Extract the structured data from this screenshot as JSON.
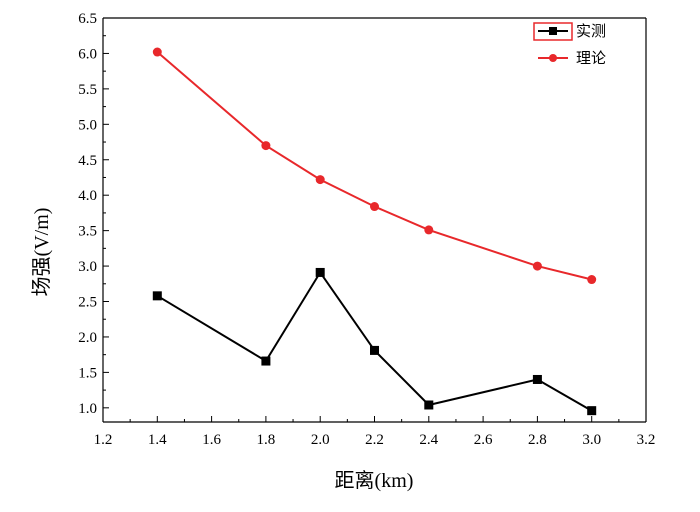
{
  "chart_data": {
    "type": "line",
    "xlabel": "距离(km)",
    "ylabel": "场强(V/m)",
    "xlim": [
      1.2,
      3.2
    ],
    "ylim": [
      0.8,
      6.5
    ],
    "xticks": [
      "1.2",
      "1.4",
      "1.6",
      "1.8",
      "2.0",
      "2.2",
      "2.4",
      "2.6",
      "2.8",
      "3.0",
      "3.2"
    ],
    "yticks": [
      "1.0",
      "1.5",
      "2.0",
      "2.5",
      "3.0",
      "3.5",
      "4.0",
      "4.5",
      "5.0",
      "5.5",
      "6.0",
      "6.5"
    ],
    "grid": false,
    "legend_position": "top-right",
    "series": [
      {
        "name": "实测",
        "color": "#000000",
        "marker": "square",
        "x": [
          1.4,
          1.8,
          2.0,
          2.2,
          2.4,
          2.8,
          3.0
        ],
        "y": [
          2.58,
          1.66,
          2.91,
          1.81,
          1.04,
          1.4,
          0.96
        ]
      },
      {
        "name": "理论",
        "color": "#e8282b",
        "marker": "circle",
        "x": [
          1.4,
          1.8,
          2.0,
          2.2,
          2.4,
          2.8,
          3.0
        ],
        "y": [
          6.02,
          4.7,
          4.22,
          3.84,
          3.51,
          3.0,
          2.81
        ]
      }
    ]
  }
}
